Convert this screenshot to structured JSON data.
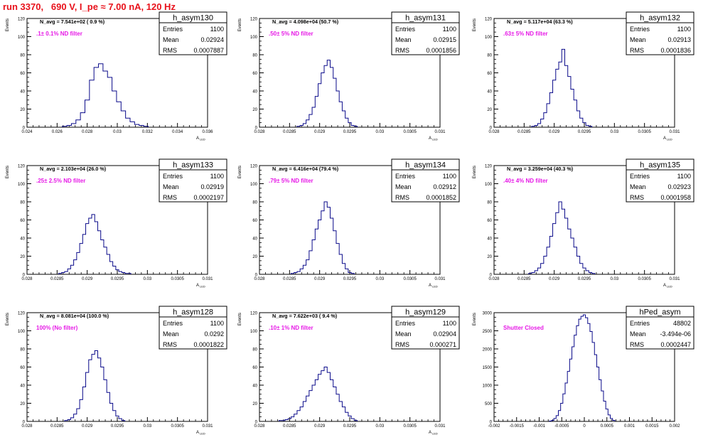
{
  "page": {
    "title": "run 3370,   690 V, I_pe ≈ 7.00 nA, 120 Hz"
  },
  "chart_data": [
    {
      "type": "histogram",
      "name": "h_asym130",
      "ylabel": "Events",
      "xlabel": "A_LED",
      "annotation": "N_avg = 7.541e+02 ( 0.9 %)",
      "filter_label": ".1± 0.1% ND filter",
      "stats": {
        "entries_label": "Entries",
        "entries": "1100",
        "mean_label": "Mean",
        "mean": "0.02924",
        "rms_label": "RMS",
        "rms": "0.0007887"
      },
      "xlim": [
        0.024,
        0.036
      ],
      "xticks": [
        0.024,
        0.026,
        0.028,
        0.03,
        0.032,
        0.034,
        0.036
      ],
      "xtick_labels": [
        "0.024",
        "0.026",
        "0.028",
        "0.03",
        "0.032",
        "0.034",
        "0.036"
      ],
      "ylim": [
        0,
        120
      ],
      "yticks": [
        0,
        20,
        40,
        60,
        80,
        100,
        120
      ],
      "ytick_labels": [
        "0",
        "20",
        "40",
        "60",
        "80",
        "100",
        "120"
      ],
      "x": [
        0.0265,
        0.0268,
        0.0271,
        0.0274,
        0.0277,
        0.028,
        0.0283,
        0.0286,
        0.0289,
        0.0292,
        0.0295,
        0.0298,
        0.0301,
        0.0304,
        0.0307,
        0.031,
        0.0313,
        0.0316,
        0.0319
      ],
      "values": [
        1,
        2,
        4,
        8,
        16,
        30,
        52,
        66,
        70,
        62,
        55,
        40,
        28,
        18,
        10,
        6,
        3,
        2,
        1
      ]
    },
    {
      "type": "histogram",
      "name": "h_asym131",
      "ylabel": "Events",
      "xlabel": "A_LED",
      "annotation": "N_avg = 4.098e+04 (50.7 %)",
      "filter_label": ".50± 5% ND filter",
      "stats": {
        "entries_label": "Entries",
        "entries": "1100",
        "mean_label": "Mean",
        "mean": "0.02915",
        "rms_label": "RMS",
        "rms": "0.0001856"
      },
      "xlim": [
        0.028,
        0.031
      ],
      "xticks": [
        0.028,
        0.0285,
        0.029,
        0.0295,
        0.03,
        0.0305,
        0.031
      ],
      "xtick_labels": [
        "0.028",
        "0.0285",
        "0.029",
        "0.0295",
        "0.03",
        "0.0305",
        "0.031"
      ],
      "ylim": [
        0,
        120
      ],
      "yticks": [
        0,
        20,
        40,
        60,
        80,
        100,
        120
      ],
      "ytick_labels": [
        "0",
        "20",
        "40",
        "60",
        "80",
        "100",
        "120"
      ],
      "x": [
        0.02865,
        0.0287,
        0.02875,
        0.0288,
        0.02885,
        0.0289,
        0.02895,
        0.029,
        0.02905,
        0.0291,
        0.02915,
        0.0292,
        0.02925,
        0.0293,
        0.02935,
        0.0294,
        0.02945,
        0.0295,
        0.02955,
        0.0296
      ],
      "values": [
        1,
        2,
        4,
        8,
        14,
        22,
        34,
        48,
        60,
        68,
        74,
        66,
        54,
        40,
        28,
        18,
        10,
        5,
        2,
        1
      ]
    },
    {
      "type": "histogram",
      "name": "h_asym132",
      "ylabel": "Events",
      "xlabel": "A_LED",
      "annotation": "N_avg = 5.117e+04 (63.3 %)",
      "filter_label": ".63± 5% ND filter",
      "stats": {
        "entries_label": "Entries",
        "entries": "1100",
        "mean_label": "Mean",
        "mean": "0.02913",
        "rms_label": "RMS",
        "rms": "0.0001836"
      },
      "xlim": [
        0.028,
        0.031
      ],
      "xticks": [
        0.028,
        0.0285,
        0.029,
        0.0295,
        0.03,
        0.0305,
        0.031
      ],
      "xtick_labels": [
        "0.028",
        "0.0285",
        "0.029",
        "0.0295",
        "0.03",
        "0.0305",
        "0.031"
      ],
      "ylim": [
        0,
        120
      ],
      "yticks": [
        0,
        20,
        40,
        60,
        80,
        100,
        120
      ],
      "ytick_labels": [
        "0",
        "20",
        "40",
        "60",
        "80",
        "100",
        "120"
      ],
      "x": [
        0.02865,
        0.0287,
        0.02875,
        0.0288,
        0.02885,
        0.0289,
        0.02895,
        0.029,
        0.02905,
        0.0291,
        0.02915,
        0.0292,
        0.02925,
        0.0293,
        0.02935,
        0.0294,
        0.02945,
        0.0295,
        0.02955,
        0.0296
      ],
      "values": [
        1,
        2,
        4,
        9,
        16,
        26,
        38,
        52,
        64,
        72,
        86,
        68,
        56,
        42,
        30,
        18,
        10,
        5,
        2,
        1
      ]
    },
    {
      "type": "histogram",
      "name": "h_asym133",
      "ylabel": "Events",
      "xlabel": "A_LED",
      "annotation": "N_avg = 2.103e+04 (26.0 %)",
      "filter_label": ".25± 2.5% ND filter",
      "stats": {
        "entries_label": "Entries",
        "entries": "1100",
        "mean_label": "Mean",
        "mean": "0.02919",
        "rms_label": "RMS",
        "rms": "0.0002197"
      },
      "xlim": [
        0.028,
        0.031
      ],
      "xticks": [
        0.028,
        0.0285,
        0.029,
        0.0295,
        0.03,
        0.0305,
        0.031
      ],
      "xtick_labels": [
        "0.028",
        "0.0285",
        "0.029",
        "0.0295",
        "0.03",
        "0.0305",
        "0.031"
      ],
      "ylim": [
        0,
        120
      ],
      "yticks": [
        0,
        20,
        40,
        60,
        80,
        100,
        120
      ],
      "ytick_labels": [
        "0",
        "20",
        "40",
        "60",
        "80",
        "100",
        "120"
      ],
      "x": [
        0.02855,
        0.0286,
        0.02865,
        0.0287,
        0.02875,
        0.0288,
        0.02885,
        0.0289,
        0.02895,
        0.029,
        0.02905,
        0.0291,
        0.02915,
        0.0292,
        0.02925,
        0.0293,
        0.02935,
        0.0294,
        0.02945,
        0.0295,
        0.02955,
        0.0296,
        0.02965,
        0.0297
      ],
      "values": [
        1,
        2,
        3,
        6,
        10,
        16,
        24,
        34,
        44,
        56,
        62,
        66,
        58,
        48,
        38,
        30,
        22,
        14,
        9,
        5,
        3,
        2,
        1,
        1
      ]
    },
    {
      "type": "histogram",
      "name": "h_asym134",
      "ylabel": "Events",
      "xlabel": "A_LED",
      "annotation": "N_avg = 6.416e+04 (79.4 %)",
      "filter_label": ".79± 5% ND filter",
      "stats": {
        "entries_label": "Entries",
        "entries": "1100",
        "mean_label": "Mean",
        "mean": "0.02912",
        "rms_label": "RMS",
        "rms": "0.0001852"
      },
      "xlim": [
        0.028,
        0.031
      ],
      "xticks": [
        0.028,
        0.0285,
        0.029,
        0.0295,
        0.03,
        0.0305,
        0.031
      ],
      "xtick_labels": [
        "0.028",
        "0.0285",
        "0.029",
        "0.0295",
        "0.03",
        "0.0305",
        "0.031"
      ],
      "ylim": [
        0,
        120
      ],
      "yticks": [
        0,
        20,
        40,
        60,
        80,
        100,
        120
      ],
      "ytick_labels": [
        "0",
        "20",
        "40",
        "60",
        "80",
        "100",
        "120"
      ],
      "x": [
        0.02855,
        0.0286,
        0.02865,
        0.0287,
        0.02875,
        0.0288,
        0.02885,
        0.0289,
        0.02895,
        0.029,
        0.02905,
        0.0291,
        0.02915,
        0.0292,
        0.02925,
        0.0293,
        0.02935,
        0.0294,
        0.02945,
        0.0295,
        0.02955
      ],
      "values": [
        1,
        2,
        3,
        6,
        10,
        16,
        26,
        38,
        50,
        60,
        70,
        80,
        74,
        62,
        48,
        34,
        22,
        12,
        6,
        2,
        1
      ]
    },
    {
      "type": "histogram",
      "name": "h_asym135",
      "ylabel": "Events",
      "xlabel": "A_LED",
      "annotation": "N_avg = 3.259e+04 (40.3 %)",
      "filter_label": ".40± 4% ND filter",
      "stats": {
        "entries_label": "Entries",
        "entries": "1100",
        "mean_label": "Mean",
        "mean": "0.02923",
        "rms_label": "RMS",
        "rms": "0.0001958"
      },
      "xlim": [
        0.028,
        0.031
      ],
      "xticks": [
        0.028,
        0.0285,
        0.029,
        0.0295,
        0.03,
        0.0305,
        0.031
      ],
      "xtick_labels": [
        "0.028",
        "0.0285",
        "0.029",
        "0.0295",
        "0.03",
        "0.0305",
        "0.031"
      ],
      "ylim": [
        0,
        120
      ],
      "yticks": [
        0,
        20,
        40,
        60,
        80,
        100,
        120
      ],
      "ytick_labels": [
        "0",
        "20",
        "40",
        "60",
        "80",
        "100",
        "120"
      ],
      "x": [
        0.0286,
        0.02865,
        0.0287,
        0.02875,
        0.0288,
        0.02885,
        0.0289,
        0.02895,
        0.029,
        0.02905,
        0.0291,
        0.02915,
        0.0292,
        0.02925,
        0.0293,
        0.02935,
        0.0294,
        0.02945,
        0.0295,
        0.02955,
        0.0296,
        0.02965
      ],
      "values": [
        1,
        2,
        4,
        7,
        12,
        20,
        30,
        42,
        56,
        68,
        80,
        72,
        62,
        50,
        40,
        30,
        20,
        12,
        7,
        4,
        2,
        1
      ]
    },
    {
      "type": "histogram",
      "name": "h_asym128",
      "ylabel": "Events",
      "xlabel": "A_LED",
      "annotation": "N_avg = 8.081e+04 (100.0 %)",
      "filter_label": "100% (No filter)",
      "stats": {
        "entries_label": "Entries",
        "entries": "1100",
        "mean_label": "Mean",
        "mean": "0.0292",
        "rms_label": "RMS",
        "rms": "0.0001822"
      },
      "xlim": [
        0.028,
        0.031
      ],
      "xticks": [
        0.028,
        0.0285,
        0.029,
        0.0295,
        0.03,
        0.0305,
        0.031
      ],
      "xtick_labels": [
        "0.028",
        "0.0285",
        "0.029",
        "0.0295",
        "0.03",
        "0.0305",
        "0.031"
      ],
      "ylim": [
        0,
        120
      ],
      "yticks": [
        0,
        20,
        40,
        60,
        80,
        100,
        120
      ],
      "ytick_labels": [
        "0",
        "20",
        "40",
        "60",
        "80",
        "100",
        "120"
      ],
      "x": [
        0.02865,
        0.0287,
        0.02875,
        0.0288,
        0.02885,
        0.0289,
        0.02895,
        0.029,
        0.02905,
        0.0291,
        0.02915,
        0.0292,
        0.02925,
        0.0293,
        0.02935,
        0.0294,
        0.02945,
        0.0295,
        0.02955,
        0.0296
      ],
      "values": [
        1,
        2,
        4,
        8,
        14,
        24,
        38,
        54,
        68,
        74,
        78,
        70,
        60,
        46,
        32,
        20,
        12,
        6,
        3,
        1
      ]
    },
    {
      "type": "histogram",
      "name": "h_asym129",
      "ylabel": "Events",
      "xlabel": "A_LED",
      "annotation": "N_avg = 7.622e+03 ( 9.4 %)",
      "filter_label": ".10± 1% ND filter",
      "stats": {
        "entries_label": "Entries",
        "entries": "1100",
        "mean_label": "Mean",
        "mean": "0.02904",
        "rms_label": "RMS",
        "rms": "0.000271"
      },
      "xlim": [
        0.028,
        0.031
      ],
      "xticks": [
        0.028,
        0.0285,
        0.029,
        0.0295,
        0.03,
        0.0305,
        0.031
      ],
      "xtick_labels": [
        "0.028",
        "0.0285",
        "0.029",
        "0.0295",
        "0.03",
        "0.0305",
        "0.031"
      ],
      "ylim": [
        0,
        120
      ],
      "yticks": [
        0,
        20,
        40,
        60,
        80,
        100,
        120
      ],
      "ytick_labels": [
        "0",
        "20",
        "40",
        "60",
        "80",
        "100",
        "120"
      ],
      "x": [
        0.02835,
        0.0284,
        0.02845,
        0.0285,
        0.02855,
        0.0286,
        0.02865,
        0.0287,
        0.02875,
        0.0288,
        0.02885,
        0.0289,
        0.02895,
        0.029,
        0.02905,
        0.0291,
        0.02915,
        0.0292,
        0.02925,
        0.0293,
        0.02935,
        0.0294,
        0.02945,
        0.0295,
        0.02955,
        0.0296
      ],
      "values": [
        1,
        1,
        2,
        3,
        5,
        8,
        12,
        16,
        22,
        28,
        34,
        40,
        46,
        52,
        56,
        60,
        54,
        46,
        38,
        30,
        22,
        16,
        10,
        6,
        3,
        1
      ]
    },
    {
      "type": "histogram",
      "name": "hPed_asym",
      "ylabel": "Events",
      "xlabel": "",
      "annotation": "",
      "filter_label": "Shutter Closed",
      "stats": {
        "entries_label": "Entries",
        "entries": "48802",
        "mean_label": "Mean",
        "mean": "-3.494e-06",
        "rms_label": "RMS",
        "rms": "0.0002447"
      },
      "xlim": [
        -0.002,
        0.002
      ],
      "xticks": [
        -0.002,
        -0.0015,
        -0.001,
        -0.0005,
        0,
        0.0005,
        0.001,
        0.0015,
        0.002
      ],
      "xtick_labels": [
        "-0.002",
        "-0.0015",
        "-0.001",
        "-0.0005",
        "0",
        "0.0005",
        "0.001",
        "0.0015",
        "0.002"
      ],
      "ylim": [
        0,
        3000
      ],
      "yticks": [
        0,
        500,
        1000,
        1500,
        2000,
        2500,
        3000
      ],
      "ytick_labels": [
        "0",
        "500",
        "1000",
        "1500",
        "2000",
        "2500",
        "3000"
      ],
      "x": [
        -0.00075,
        -0.0007,
        -0.00065,
        -0.0006,
        -0.00055,
        -0.0005,
        -0.00045,
        -0.0004,
        -0.00035,
        -0.0003,
        -0.00025,
        -0.0002,
        -0.00015,
        -0.0001,
        -5e-05,
        0,
        5e-05,
        0.0001,
        0.00015,
        0.0002,
        0.00025,
        0.0003,
        0.00035,
        0.0004,
        0.00045,
        0.0005,
        0.00055,
        0.0006,
        0.00065
      ],
      "values": [
        10,
        30,
        80,
        160,
        300,
        500,
        760,
        1060,
        1380,
        1720,
        2060,
        2380,
        2640,
        2820,
        2900,
        2940,
        2860,
        2700,
        2480,
        2180,
        1840,
        1500,
        1150,
        840,
        560,
        340,
        180,
        80,
        30
      ]
    }
  ]
}
